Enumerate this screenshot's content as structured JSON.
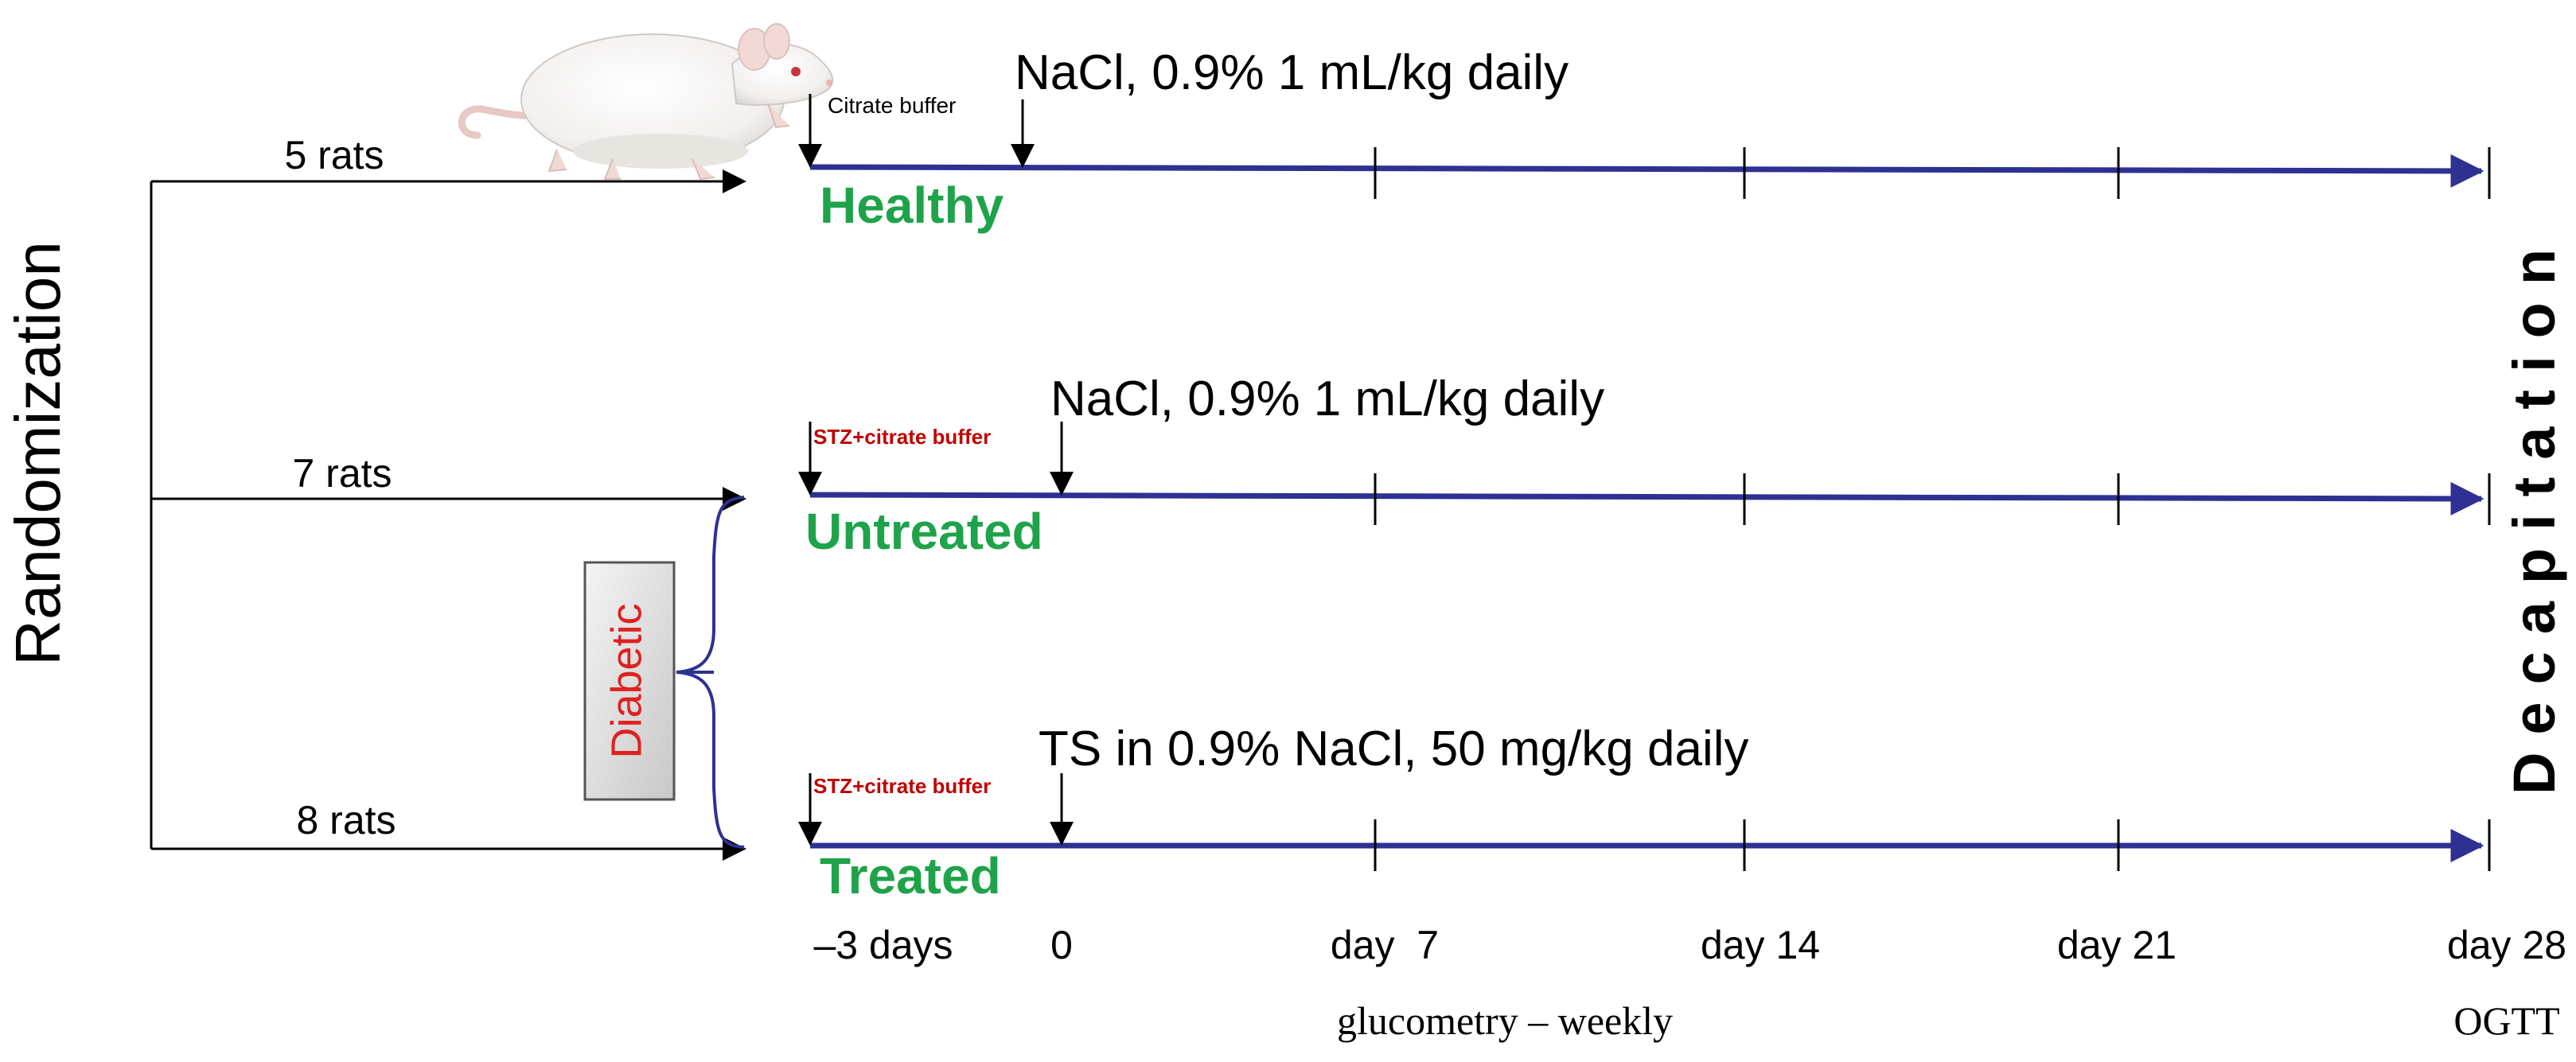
{
  "title_vertical": "Randomization",
  "end_label": "Decapitation",
  "groups": [
    {
      "count_label": "5 rats",
      "name": "Healthy",
      "induction": "Citrate buffer",
      "treatment": "NaCl, 0.9% 1 mL/kg daily"
    },
    {
      "count_label": "7 rats",
      "name": "Untreated",
      "induction": "STZ+citrate buffer",
      "treatment": "NaCl, 0.9% 1 mL/kg daily"
    },
    {
      "count_label": "8 rats",
      "name": "Treated",
      "induction": "STZ+citrate buffer",
      "treatment": "TS in 0.9% NaCl, 50 mg/kg daily"
    }
  ],
  "diabetic_label": "Diabetic",
  "timeline": {
    "ticks": [
      "–3 days",
      "0",
      "day  7",
      "day 14",
      "day 21",
      "day 28"
    ],
    "note_glucometry": "glucometry – weekly",
    "note_ogtt": "OGTT"
  },
  "colors": {
    "timeline": "#2e3192",
    "group_name": "#1fa34a",
    "stz": "#c00000",
    "diabetic_text": "#e02020",
    "arrow": "#000000"
  },
  "icons": {
    "animal": "rat-icon"
  }
}
